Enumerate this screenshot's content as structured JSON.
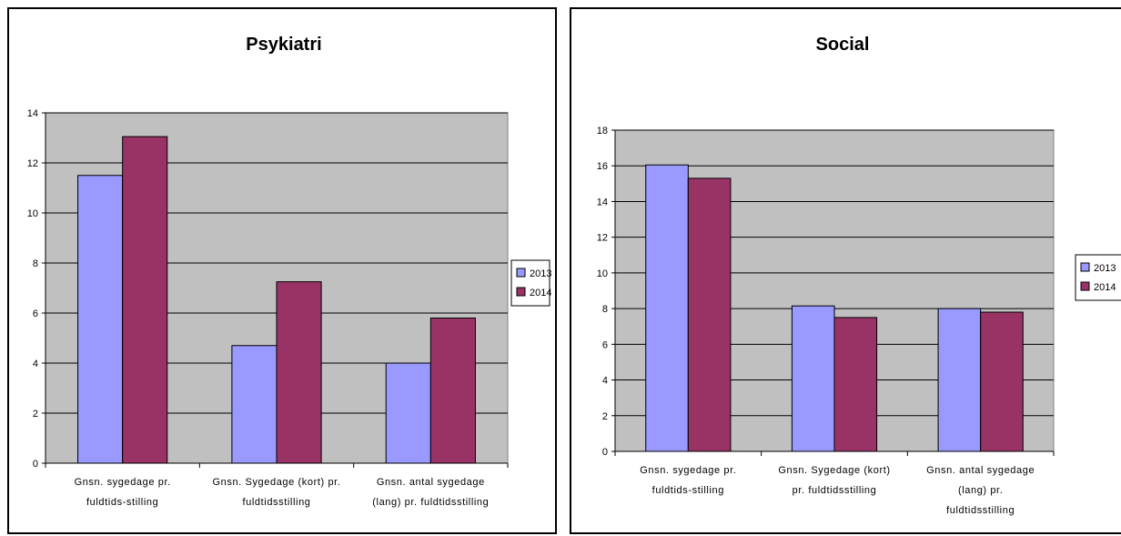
{
  "charts": [
    {
      "title": "Psykiatri",
      "legend": [
        "2013",
        "2014"
      ]
    },
    {
      "title": "Social",
      "legend": [
        "2013",
        "2014"
      ]
    }
  ],
  "colors": {
    "s2013": "#9999ff",
    "s2014": "#993366",
    "plot_bg": "#c0c0c0"
  },
  "chart_data": [
    {
      "type": "bar",
      "title": "Psykiatri",
      "categories": [
        [
          "Gnsn. sygedage pr.",
          "fuldtids-stilling"
        ],
        [
          "Gnsn. Sygedage (kort) pr.",
          "fuldtidsstilling"
        ],
        [
          "Gnsn. antal sygedage",
          "(lang) pr. fuldtidsstilling"
        ]
      ],
      "series": [
        {
          "name": "2013",
          "values": [
            11.5,
            4.7,
            4.0
          ]
        },
        {
          "name": "2014",
          "values": [
            13.05,
            7.25,
            5.8
          ]
        }
      ],
      "ylim": [
        0,
        14
      ],
      "yticks": [
        0,
        2,
        4,
        6,
        8,
        10,
        12,
        14
      ],
      "grid": true,
      "legend_position": "right"
    },
    {
      "type": "bar",
      "title": "Social",
      "categories": [
        [
          "Gnsn. sygedage pr.",
          "fuldtids-stilling"
        ],
        [
          "Gnsn. Sygedage (kort)",
          "pr. fuldtidsstilling"
        ],
        [
          "Gnsn. antal sygedage",
          "(lang) pr.",
          "fuldtidsstilling"
        ]
      ],
      "series": [
        {
          "name": "2013",
          "values": [
            16.05,
            8.15,
            8.0
          ]
        },
        {
          "name": "2014",
          "values": [
            15.3,
            7.5,
            7.8
          ]
        }
      ],
      "ylim": [
        0,
        18
      ],
      "yticks": [
        0,
        2,
        4,
        6,
        8,
        10,
        12,
        14,
        16,
        18
      ],
      "grid": true,
      "legend_position": "right"
    }
  ]
}
